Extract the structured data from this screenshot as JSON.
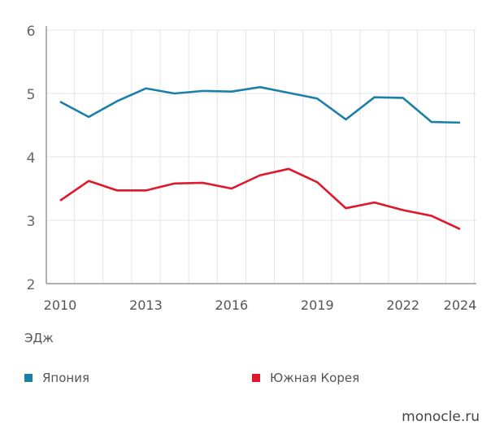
{
  "chart_data": {
    "type": "line",
    "title": "",
    "xlabel": "",
    "ylabel": "ЭДж",
    "ylim": [
      2,
      6
    ],
    "yticks": [
      "2",
      "3",
      "4",
      "5",
      "6"
    ],
    "xticks": [
      "2010",
      "2013",
      "2016",
      "2019",
      "2022",
      "2024"
    ],
    "x": [
      2010,
      2011,
      2012,
      2013,
      2014,
      2015,
      2016,
      2017,
      2018,
      2019,
      2020,
      2021,
      2022,
      2023,
      2024
    ],
    "series": [
      {
        "name": "Япония",
        "color": "#1a80a8",
        "values": [
          4.87,
          4.63,
          4.88,
          5.08,
          5.0,
          5.04,
          5.03,
          5.1,
          5.01,
          4.92,
          4.59,
          4.94,
          4.93,
          4.55,
          4.54
        ]
      },
      {
        "name": "Южная Корея",
        "color": "#e0162b",
        "values": [
          3.31,
          3.62,
          3.47,
          3.47,
          3.58,
          3.59,
          3.5,
          3.71,
          3.81,
          3.6,
          3.19,
          3.28,
          3.16,
          3.07,
          2.86
        ]
      }
    ],
    "grid": true,
    "legend_position": "bottom"
  },
  "source": "monocle.ru"
}
